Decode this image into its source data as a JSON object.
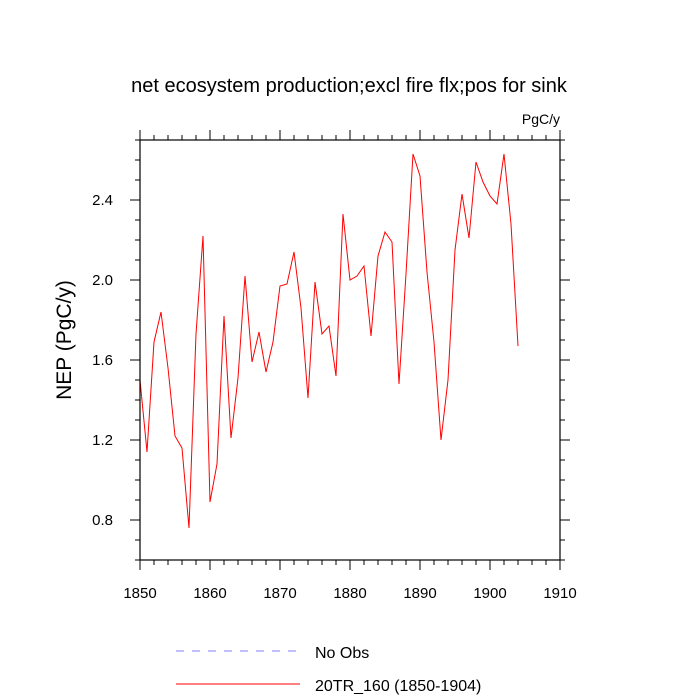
{
  "chart_data": {
    "type": "line",
    "title": "net ecosystem production;excl fire flx;pos for sink",
    "units": "PgC/y",
    "ylabel": "NEP  (PgC/y)",
    "xlabel": "",
    "xlim": [
      1850,
      1910
    ],
    "ylim": [
      0.6,
      2.7
    ],
    "xticks": [
      1850,
      1860,
      1870,
      1880,
      1890,
      1900,
      1910
    ],
    "yticks": [
      0.8,
      1.2,
      1.6,
      2.0,
      2.4
    ],
    "xtick_labels": [
      "1850",
      "1860",
      "1870",
      "1880",
      "1890",
      "1900",
      "1910"
    ],
    "ytick_labels": [
      "0.8",
      "1.2",
      "1.6",
      "2.0",
      "2.4"
    ],
    "legend_position": "bottom-center",
    "series": [
      {
        "name": "No Obs",
        "color": "#8080ff",
        "style": "dashed",
        "x": [],
        "values": []
      },
      {
        "name": "20TR_160 (1850-1904)",
        "color": "#ff0000",
        "style": "solid",
        "x": [
          1850,
          1851,
          1852,
          1853,
          1854,
          1855,
          1856,
          1857,
          1858,
          1859,
          1860,
          1861,
          1862,
          1863,
          1864,
          1865,
          1866,
          1867,
          1868,
          1869,
          1870,
          1871,
          1872,
          1873,
          1874,
          1875,
          1876,
          1877,
          1878,
          1879,
          1880,
          1881,
          1882,
          1883,
          1884,
          1885,
          1886,
          1887,
          1888,
          1889,
          1890,
          1891,
          1892,
          1893,
          1894,
          1895,
          1896,
          1897,
          1898,
          1899,
          1900,
          1901,
          1902,
          1903,
          1904
        ],
        "values": [
          1.5,
          1.14,
          1.69,
          1.84,
          1.56,
          1.22,
          1.16,
          0.76,
          1.73,
          2.22,
          0.89,
          1.08,
          1.82,
          1.21,
          1.51,
          2.02,
          1.59,
          1.74,
          1.54,
          1.69,
          1.97,
          1.98,
          2.14,
          1.86,
          1.41,
          1.99,
          1.73,
          1.77,
          1.52,
          2.33,
          2.0,
          2.02,
          2.07,
          1.72,
          2.12,
          2.24,
          2.19,
          1.48,
          2.03,
          2.63,
          2.52,
          2.04,
          1.69,
          1.2,
          1.5,
          2.15,
          2.43,
          2.21,
          2.59,
          2.49,
          2.42,
          2.38,
          2.63,
          2.28,
          1.67
        ]
      }
    ]
  }
}
